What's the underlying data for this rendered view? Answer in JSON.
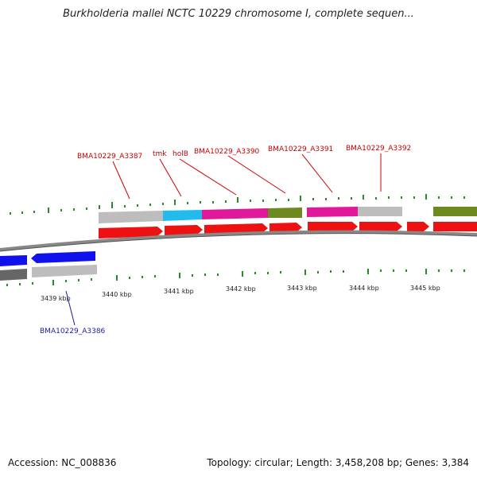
{
  "title": "Burkholderia mallei NCTC 10229 chromosome I, complete sequen...",
  "footer": {
    "accession": "Accession: NC_008836",
    "summary": "Topology: circular; Length: 3,458,208 bp; Genes: 3,384"
  },
  "colors": {
    "cds_forward": "#ee1111",
    "cds_reverse": "#1111ee",
    "backbone": "#888888",
    "gc_skew": "#2a8a2a",
    "label_forward": "#cc0000",
    "label_reverse": "#1a1aaa",
    "category_gray": "#bdbdbd",
    "category_cyan": "#22bbee",
    "category_magenta": "#e0189a",
    "category_olive": "#6e8a1e",
    "category_dark": "#666666"
  },
  "scale_ticks": [
    "3439 kbp",
    "3440 kbp",
    "3441 kbp",
    "3442 kbp",
    "3443 kbp",
    "3444 kbp",
    "3445 kbp"
  ],
  "gene_labels": {
    "forward": [
      "BMA10229_A3387",
      "tmk",
      "holB",
      "BMA10229_A3390",
      "BMA10229_A3391",
      "BMA10229_A3392"
    ],
    "reverse": [
      "BMA10229_A3386"
    ]
  }
}
